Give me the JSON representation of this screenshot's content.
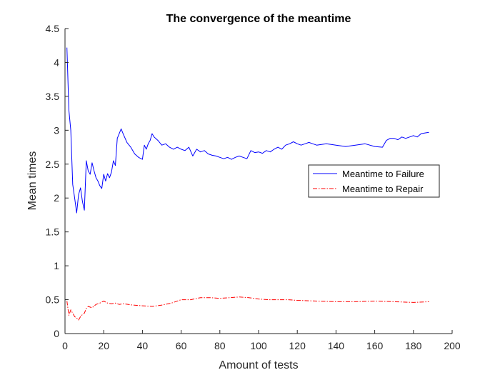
{
  "chart_data": {
    "type": "line",
    "title": "The convergence of the meantime",
    "xlabel": "Amount of tests",
    "ylabel": "Mean times",
    "xlim": [
      0,
      200
    ],
    "ylim": [
      0,
      4.5
    ],
    "xticks": [
      0,
      20,
      40,
      60,
      80,
      100,
      120,
      140,
      160,
      180,
      200
    ],
    "yticks": [
      0,
      0.5,
      1,
      1.5,
      2,
      2.5,
      3,
      3.5,
      4,
      4.5
    ],
    "grid": false,
    "legend_position": "right",
    "series": [
      {
        "name": "Meantime to Failure",
        "color": "#0000ff",
        "style": "solid",
        "x": [
          1,
          2,
          3,
          4,
          5,
          6,
          7,
          8,
          9,
          10,
          11,
          12,
          13,
          14,
          15,
          16,
          17,
          18,
          19,
          20,
          21,
          22,
          23,
          24,
          25,
          26,
          27,
          28,
          29,
          30,
          32,
          34,
          36,
          38,
          40,
          41,
          42,
          43,
          44,
          45,
          46,
          48,
          50,
          52,
          54,
          56,
          58,
          60,
          62,
          64,
          66,
          68,
          70,
          72,
          74,
          76,
          78,
          80,
          82,
          84,
          86,
          88,
          90,
          92,
          94,
          96,
          98,
          100,
          102,
          104,
          106,
          108,
          110,
          112,
          114,
          116,
          118,
          120,
          122,
          124,
          126,
          128,
          130,
          135,
          140,
          145,
          150,
          155,
          160,
          164,
          166,
          168,
          170,
          172,
          174,
          176,
          178,
          180,
          182,
          184,
          186,
          188
        ],
        "y": [
          4.22,
          3.3,
          3.0,
          2.2,
          2.0,
          1.78,
          2.05,
          2.15,
          1.95,
          1.82,
          2.55,
          2.4,
          2.35,
          2.52,
          2.4,
          2.3,
          2.25,
          2.18,
          2.14,
          2.35,
          2.25,
          2.36,
          2.3,
          2.38,
          2.55,
          2.48,
          2.88,
          2.95,
          3.02,
          2.95,
          2.82,
          2.75,
          2.65,
          2.6,
          2.57,
          2.78,
          2.72,
          2.8,
          2.85,
          2.95,
          2.9,
          2.85,
          2.78,
          2.8,
          2.75,
          2.72,
          2.75,
          2.72,
          2.7,
          2.75,
          2.62,
          2.72,
          2.68,
          2.7,
          2.65,
          2.63,
          2.62,
          2.6,
          2.58,
          2.6,
          2.57,
          2.6,
          2.62,
          2.6,
          2.58,
          2.7,
          2.67,
          2.68,
          2.66,
          2.7,
          2.68,
          2.72,
          2.75,
          2.72,
          2.78,
          2.8,
          2.83,
          2.8,
          2.78,
          2.8,
          2.82,
          2.8,
          2.78,
          2.8,
          2.78,
          2.76,
          2.78,
          2.8,
          2.76,
          2.75,
          2.85,
          2.88,
          2.88,
          2.86,
          2.9,
          2.88,
          2.9,
          2.92,
          2.9,
          2.95,
          2.96,
          2.97
        ]
      },
      {
        "name": "Meantime to Repair",
        "color": "#ff0000",
        "style": "dashdot",
        "x": [
          1,
          2,
          3,
          4,
          5,
          6,
          7,
          8,
          9,
          10,
          11,
          12,
          14,
          16,
          18,
          20,
          22,
          24,
          26,
          28,
          30,
          35,
          40,
          45,
          50,
          55,
          60,
          65,
          70,
          75,
          80,
          85,
          90,
          95,
          100,
          105,
          110,
          115,
          120,
          130,
          140,
          150,
          160,
          170,
          180,
          188
        ],
        "y": [
          0.48,
          0.27,
          0.35,
          0.3,
          0.25,
          0.23,
          0.2,
          0.25,
          0.28,
          0.3,
          0.37,
          0.4,
          0.38,
          0.43,
          0.45,
          0.48,
          0.45,
          0.44,
          0.45,
          0.43,
          0.44,
          0.42,
          0.41,
          0.4,
          0.42,
          0.45,
          0.5,
          0.5,
          0.53,
          0.53,
          0.52,
          0.53,
          0.54,
          0.53,
          0.51,
          0.5,
          0.5,
          0.5,
          0.49,
          0.48,
          0.47,
          0.47,
          0.48,
          0.47,
          0.46,
          0.47
        ]
      }
    ]
  }
}
